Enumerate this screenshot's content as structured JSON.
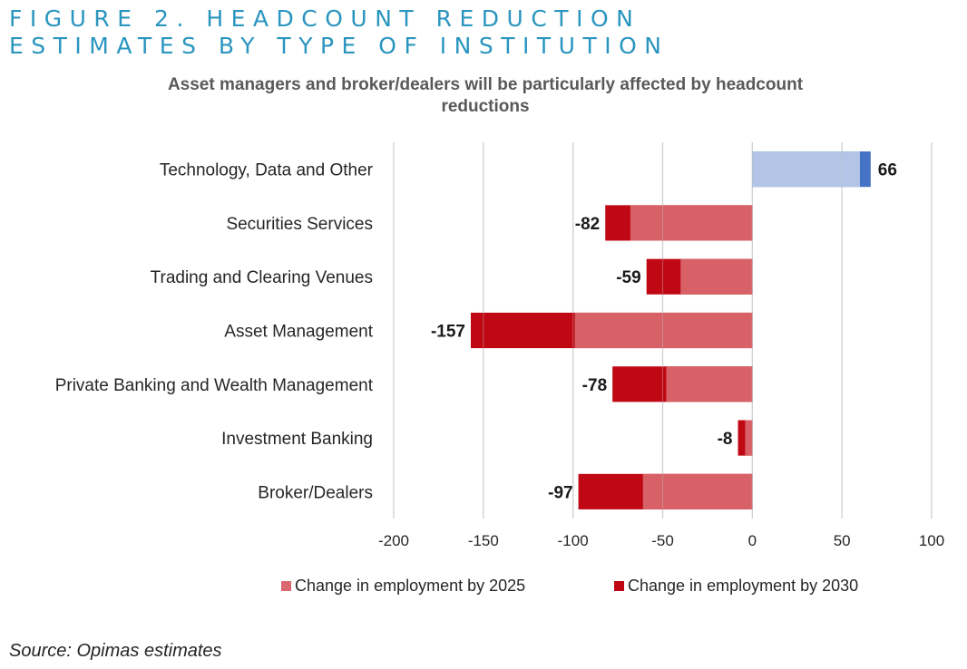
{
  "figure": {
    "title_line1": "FIGURE 2. HEADCOUNT REDUCTION",
    "title_line2": "ESTIMATES BY TYPE OF INSTITUTION",
    "source": "Source: Opimas estimates"
  },
  "chart_data": {
    "type": "bar",
    "orientation": "horizontal",
    "stacked": true,
    "title": "Asset managers and broker/dealers will be particularly affected by headcount reductions",
    "xlabel": "",
    "ylabel": "",
    "xlim": [
      -200,
      100
    ],
    "x_ticks": [
      -200,
      -150,
      -100,
      -50,
      0,
      50,
      100
    ],
    "x_tick_labels": [
      "-200",
      "-150",
      "-100",
      "-50",
      "0",
      "50",
      "100"
    ],
    "grid": "vertical",
    "legend_position": "bottom",
    "categories": [
      "Technology, Data and Other",
      "Securities Services",
      "Trading and Clearing Venues",
      "Asset Management",
      "Private Banking and Wealth Management",
      "Investment Banking",
      "Broker/Dealers"
    ],
    "series": [
      {
        "name": "Change in employment by 2025",
        "color": "#d9696f",
        "positive_color": "#bccce8",
        "values": [
          60,
          -68,
          -40,
          -99,
          -48,
          -4,
          -61
        ]
      },
      {
        "name": "Change in employment by 2030",
        "color": "#c00814",
        "positive_color": "#4472c4",
        "values": [
          66,
          -82,
          -59,
          -157,
          -78,
          -8,
          -97
        ]
      }
    ],
    "data_labels": [
      "66",
      "-82",
      "-59",
      "-157",
      "-78",
      "-8",
      "-97"
    ]
  }
}
